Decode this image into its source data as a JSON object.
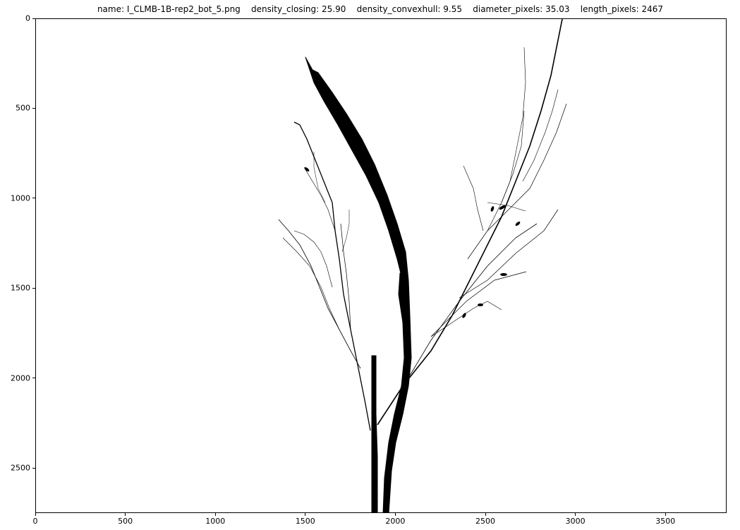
{
  "title": "name: I_CLMB-1B-rep2_bot_5.png    density_closing: 25.90    density_convexhull: 9.55    diameter_pixels: 35.03    length_pixels: 2467",
  "axes": {
    "x_ticks": [
      "0",
      "500",
      "1000",
      "1500",
      "2000",
      "2500",
      "3000",
      "3500"
    ],
    "y_ticks": [
      "0",
      "500",
      "1000",
      "1500",
      "2000",
      "2500"
    ],
    "x_range": [
      0,
      3840
    ],
    "y_range": [
      0,
      2750
    ],
    "y_inverted": true
  },
  "image": {
    "description": "binarized plant stem image: black plant silhouette on white background",
    "foreground_color": "#000000",
    "background_color": "#ffffff"
  }
}
